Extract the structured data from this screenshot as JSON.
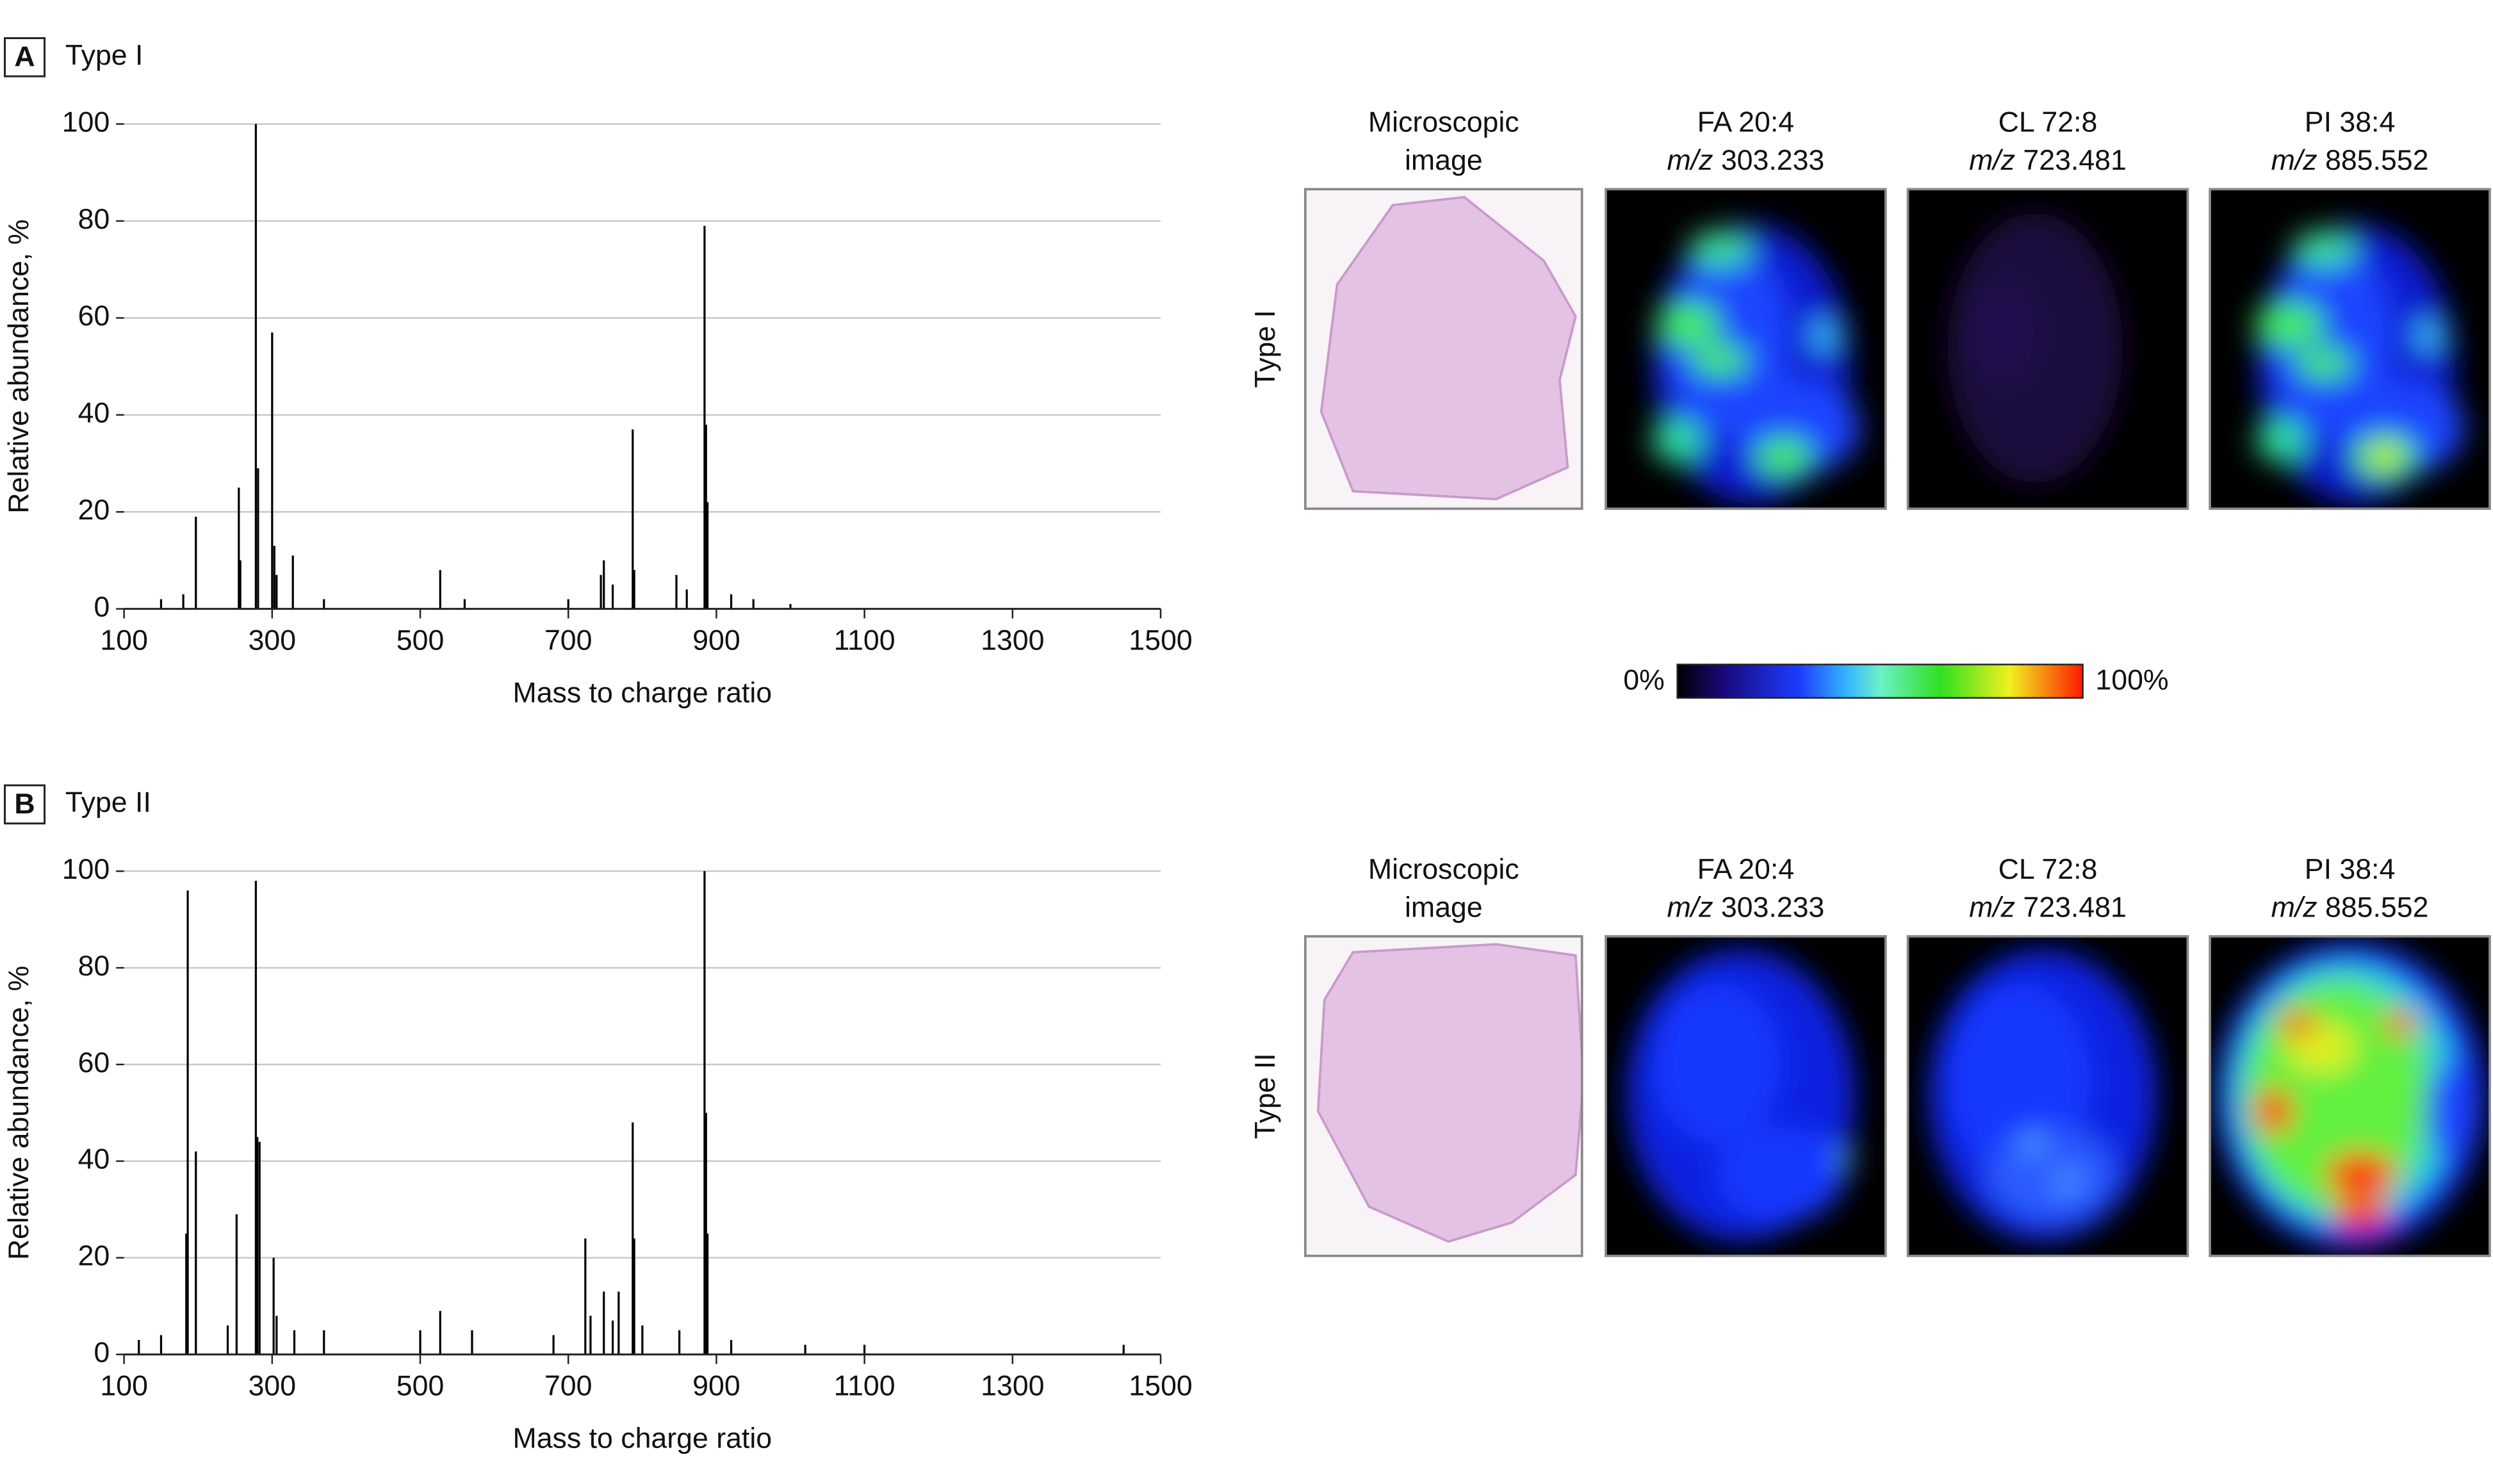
{
  "chart_data": [
    {
      "type": "stem",
      "panel": "A",
      "title": "Type I",
      "xlabel": "Mass to charge ratio",
      "ylabel": "Relative abundance, %",
      "color": "#000000",
      "grid": true,
      "xlim": [
        100,
        1500
      ],
      "ylim": [
        0,
        100
      ],
      "xticks": [
        100,
        300,
        500,
        700,
        900,
        1100,
        1300,
        1500
      ],
      "yticks": [
        0,
        20,
        40,
        60,
        80,
        100
      ],
      "x": [
        150,
        180,
        197,
        255,
        257,
        278,
        281,
        300,
        303,
        306,
        328,
        370,
        527,
        560,
        700,
        744,
        748,
        760,
        787,
        789,
        846,
        860,
        884,
        886,
        888,
        920,
        950,
        1000
      ],
      "values": [
        2,
        3,
        19,
        25,
        10,
        100,
        29,
        57,
        13,
        7,
        11,
        2,
        8,
        2,
        2,
        7,
        10,
        5,
        37,
        8,
        7,
        4,
        79,
        38,
        22,
        3,
        2,
        1
      ]
    },
    {
      "type": "stem",
      "panel": "B",
      "title": "Type II",
      "xlabel": "Mass to charge ratio",
      "ylabel": "Relative abundance, %",
      "color": "#000000",
      "grid": true,
      "xlim": [
        100,
        1500
      ],
      "ylim": [
        0,
        100
      ],
      "xticks": [
        100,
        300,
        500,
        700,
        900,
        1100,
        1300,
        1500
      ],
      "yticks": [
        0,
        20,
        40,
        60,
        80,
        100
      ],
      "x": [
        120,
        150,
        184,
        186,
        197,
        240,
        252,
        278,
        280,
        283,
        302,
        306,
        330,
        370,
        500,
        527,
        570,
        680,
        723,
        730,
        748,
        760,
        768,
        787,
        789,
        800,
        850,
        884,
        886,
        888,
        920,
        1020,
        1100,
        1450
      ],
      "values": [
        3,
        4,
        25,
        96,
        42,
        6,
        29,
        98,
        45,
        44,
        20,
        8,
        5,
        5,
        5,
        9,
        5,
        4,
        24,
        8,
        13,
        7,
        13,
        48,
        24,
        6,
        5,
        100,
        50,
        25,
        3,
        2,
        2,
        2
      ]
    }
  ],
  "image_panels": {
    "columns": [
      {
        "title": "Microscopic",
        "subtitle": "image"
      },
      {
        "title": "FA 20:4",
        "mz_label": "m/z",
        "mz": "303.233"
      },
      {
        "title": "CL 72:8",
        "mz_label": "m/z",
        "mz": "723.481"
      },
      {
        "title": "PI 38:4",
        "mz_label": "m/z",
        "mz": "885.552"
      }
    ],
    "rows": [
      {
        "label": "Type I"
      },
      {
        "label": "Type II"
      }
    ],
    "colorbar": {
      "min_label": "0%",
      "max_label": "100%"
    }
  }
}
